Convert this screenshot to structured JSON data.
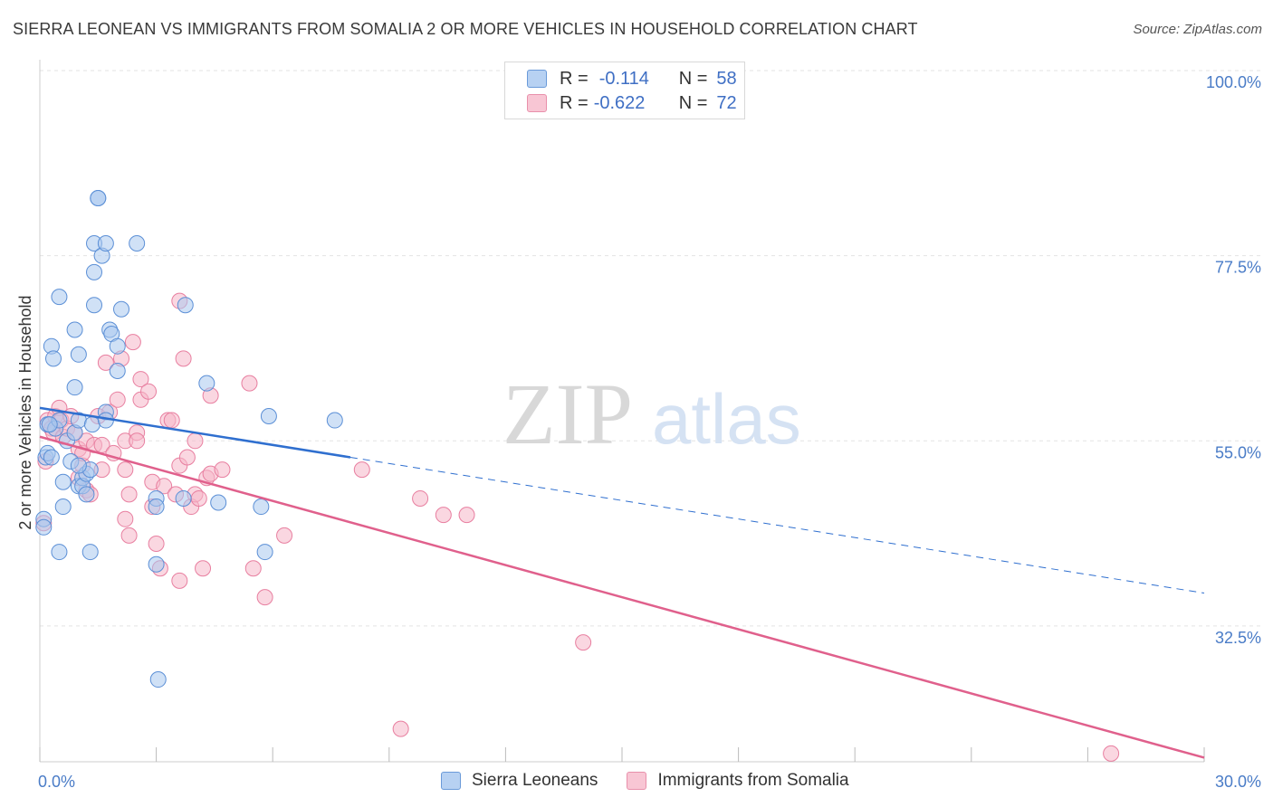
{
  "title": "SIERRA LEONEAN VS IMMIGRANTS FROM SOMALIA 2 OR MORE VEHICLES IN HOUSEHOLD CORRELATION CHART",
  "source": "Source: ZipAtlas.com",
  "watermark": {
    "zip": "ZIP",
    "atlas": "atlas"
  },
  "legend": {
    "rows": [
      {
        "r_label": "R =",
        "r_value": "-0.114",
        "n_label": "N =",
        "n_value": "58"
      },
      {
        "r_label": "R =",
        "r_value": "-0.622",
        "n_label": "N =",
        "n_value": "72"
      }
    ]
  },
  "bottom_legend": {
    "series1": "Sierra Leoneans",
    "series2": "Immigrants from Somalia"
  },
  "colors": {
    "blue_fill": "#a9c8ef",
    "blue_stroke": "#5b8fd6",
    "blue_line": "#2f6fcf",
    "pink_fill": "#f6b6c8",
    "pink_stroke": "#e87fa0",
    "pink_line": "#e0608c",
    "tick_text": "#4a7cc7",
    "grid": "#e3e3e3"
  },
  "chart_data": {
    "type": "scatter",
    "title": "SIERRA LEONEAN VS IMMIGRANTS FROM SOMALIA 2 OR MORE VEHICLES IN HOUSEHOLD CORRELATION CHART",
    "xlabel": "",
    "ylabel": "2 or more Vehicles in Household",
    "xlim": [
      0,
      30
    ],
    "ylim": [
      16,
      100
    ],
    "x_tick_labels": [
      "0.0%",
      "30.0%"
    ],
    "y_ticks": [
      100.0,
      77.5,
      55.0,
      32.5
    ],
    "y_tick_labels": [
      "100.0%",
      "77.5%",
      "55.0%",
      "32.5%"
    ],
    "grid": true,
    "legend_position": "top-center",
    "series": [
      {
        "name": "Sierra Leoneans",
        "color": "#a9c8ef",
        "points": [
          [
            0.1,
            45.5
          ],
          [
            0.1,
            44.5
          ],
          [
            0.15,
            53.0
          ],
          [
            0.2,
            57.0
          ],
          [
            0.2,
            53.5
          ],
          [
            0.3,
            53.0
          ],
          [
            0.3,
            66.5
          ],
          [
            0.35,
            65.0
          ],
          [
            0.4,
            56.5
          ],
          [
            0.5,
            72.5
          ],
          [
            0.5,
            57.5
          ],
          [
            0.5,
            41.5
          ],
          [
            0.6,
            50.0
          ],
          [
            0.6,
            47.0
          ],
          [
            0.7,
            55.0
          ],
          [
            0.8,
            52.5
          ],
          [
            0.9,
            61.5
          ],
          [
            0.9,
            56.0
          ],
          [
            0.9,
            68.5
          ],
          [
            1.0,
            65.5
          ],
          [
            1.0,
            57.5
          ],
          [
            1.0,
            49.5
          ],
          [
            1.1,
            50.5
          ],
          [
            1.1,
            49.5
          ],
          [
            1.2,
            51.0
          ],
          [
            1.2,
            48.5
          ],
          [
            1.3,
            41.5
          ],
          [
            1.3,
            51.5
          ],
          [
            1.35,
            57.0
          ],
          [
            1.4,
            75.5
          ],
          [
            1.4,
            79.0
          ],
          [
            1.4,
            71.5
          ],
          [
            1.5,
            84.5
          ],
          [
            1.5,
            84.5
          ],
          [
            1.6,
            77.5
          ],
          [
            1.7,
            79.0
          ],
          [
            1.7,
            58.5
          ],
          [
            1.7,
            57.5
          ],
          [
            1.8,
            68.5
          ],
          [
            1.85,
            68.0
          ],
          [
            2.0,
            63.5
          ],
          [
            2.0,
            66.5
          ],
          [
            2.1,
            71.0
          ],
          [
            2.5,
            79.0
          ],
          [
            3.0,
            48.0
          ],
          [
            3.0,
            47.0
          ],
          [
            3.0,
            40.0
          ],
          [
            3.05,
            26.0
          ],
          [
            3.7,
            48.0
          ],
          [
            3.75,
            71.5
          ],
          [
            4.3,
            62.0
          ],
          [
            4.6,
            47.5
          ],
          [
            5.7,
            47.0
          ],
          [
            5.8,
            41.5
          ],
          [
            5.9,
            58.0
          ],
          [
            7.6,
            57.5
          ],
          [
            0.25,
            57.0
          ],
          [
            1.0,
            52.0
          ]
        ]
      },
      {
        "name": "Immigrants from Somalia",
        "color": "#f6b6c8",
        "points": [
          [
            0.1,
            45.0
          ],
          [
            0.15,
            52.5
          ],
          [
            0.2,
            57.5
          ],
          [
            0.3,
            56.5
          ],
          [
            0.35,
            56.0
          ],
          [
            0.4,
            58.0
          ],
          [
            0.5,
            59.0
          ],
          [
            0.55,
            57.5
          ],
          [
            0.6,
            55.5
          ],
          [
            0.7,
            56.5
          ],
          [
            0.8,
            58.0
          ],
          [
            0.9,
            56.0
          ],
          [
            1.0,
            54.0
          ],
          [
            1.0,
            50.5
          ],
          [
            1.1,
            52.0
          ],
          [
            1.1,
            53.5
          ],
          [
            1.2,
            55.0
          ],
          [
            1.2,
            49.0
          ],
          [
            1.3,
            48.5
          ],
          [
            1.4,
            54.5
          ],
          [
            1.5,
            58.0
          ],
          [
            1.6,
            54.5
          ],
          [
            1.6,
            51.5
          ],
          [
            1.7,
            64.5
          ],
          [
            1.8,
            58.5
          ],
          [
            1.9,
            53.5
          ],
          [
            2.0,
            60.0
          ],
          [
            2.1,
            65.0
          ],
          [
            2.2,
            55.0
          ],
          [
            2.2,
            51.5
          ],
          [
            2.2,
            45.5
          ],
          [
            2.3,
            48.5
          ],
          [
            2.3,
            43.5
          ],
          [
            2.4,
            67.0
          ],
          [
            2.5,
            56.0
          ],
          [
            2.5,
            55.0
          ],
          [
            2.6,
            62.5
          ],
          [
            2.6,
            60.0
          ],
          [
            2.8,
            61.0
          ],
          [
            2.9,
            50.0
          ],
          [
            2.9,
            47.0
          ],
          [
            3.0,
            42.5
          ],
          [
            3.1,
            39.5
          ],
          [
            3.2,
            49.5
          ],
          [
            3.3,
            57.5
          ],
          [
            3.4,
            57.5
          ],
          [
            3.5,
            48.5
          ],
          [
            3.6,
            52.0
          ],
          [
            3.6,
            38.0
          ],
          [
            3.6,
            72.0
          ],
          [
            3.7,
            65.0
          ],
          [
            3.8,
            53.0
          ],
          [
            3.9,
            47.0
          ],
          [
            4.0,
            55.0
          ],
          [
            4.0,
            48.5
          ],
          [
            4.1,
            48.0
          ],
          [
            4.2,
            39.5
          ],
          [
            4.3,
            50.5
          ],
          [
            4.4,
            60.5
          ],
          [
            4.4,
            51.0
          ],
          [
            4.7,
            51.5
          ],
          [
            5.4,
            62.0
          ],
          [
            5.5,
            39.5
          ],
          [
            5.8,
            36.0
          ],
          [
            6.3,
            43.5
          ],
          [
            8.3,
            51.5
          ],
          [
            9.8,
            48.0
          ],
          [
            10.4,
            46.0
          ],
          [
            11.0,
            46.0
          ],
          [
            9.3,
            20.0
          ],
          [
            14.0,
            30.5
          ],
          [
            27.6,
            17.0
          ]
        ]
      }
    ],
    "trend_lines": [
      {
        "series": "Sierra Leoneans",
        "x0": 0.0,
        "y0": 59.0,
        "x1": 8.0,
        "y1": 53.0,
        "dashed_x0": 8.0,
        "dashed_y0": 53.0,
        "dashed_x1": 30.0,
        "dashed_y1": 36.5
      },
      {
        "series": "Immigrants from Somalia",
        "x0": 0.0,
        "y0": 55.5,
        "x1": 30.0,
        "y1": 16.5
      }
    ]
  }
}
